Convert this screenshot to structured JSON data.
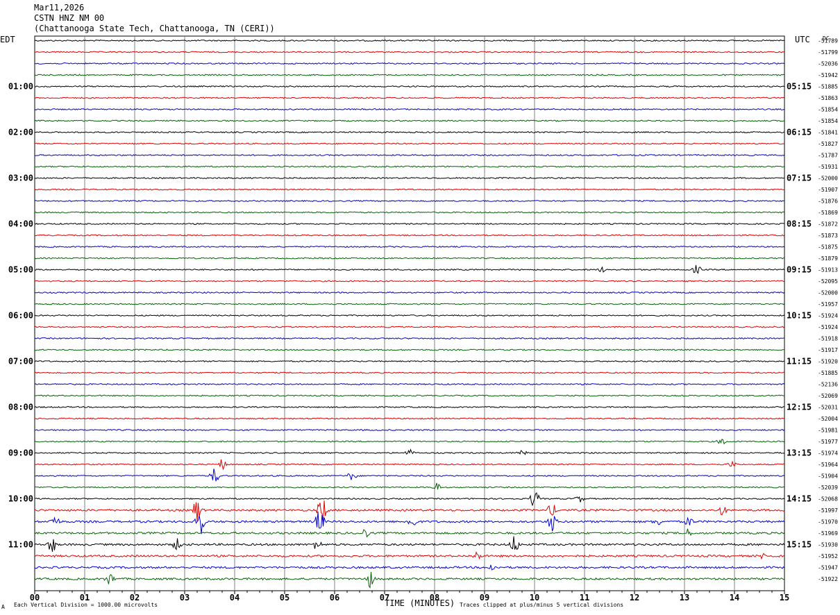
{
  "header": {
    "date": "Mar11,2026",
    "station": "CSTN HNZ NM 00",
    "location": "(Chattanooga State Tech, Chattanooga, TN (CERI))"
  },
  "chart_data": {
    "type": "line",
    "title": "",
    "left_axis_label": "EDT",
    "right_axis_label": "UTC",
    "dc_label": "DC",
    "xlabel": "TIME (MINUTES)",
    "x_range": [
      0,
      15
    ],
    "x_ticks": [
      "00",
      "01",
      "02",
      "03",
      "04",
      "05",
      "06",
      "07",
      "08",
      "09",
      "10",
      "11",
      "12",
      "13",
      "14",
      "15"
    ],
    "grid": true,
    "trace_colors": [
      "#000000",
      "#e00000",
      "#0000d0",
      "#006400"
    ],
    "left_hour_labels": [
      "01:00",
      "02:00",
      "03:00",
      "04:00",
      "05:00",
      "06:00",
      "07:00",
      "08:00",
      "09:00",
      "10:00",
      "11:00"
    ],
    "right_hour_labels": [
      "05:15",
      "06:15",
      "07:15",
      "08:15",
      "09:15",
      "10:15",
      "11:15",
      "12:15",
      "13:15",
      "14:15",
      "15:15"
    ],
    "dc_offsets": [
      "-51789",
      "-51799",
      "-52036",
      "-51942",
      "-51885",
      "-51863",
      "-51854",
      "-51854",
      "-51841",
      "-51827",
      "-51787",
      "-51931",
      "-52000",
      "-51907",
      "-51876",
      "-51869",
      "-51872",
      "-51873",
      "-51875",
      "-51879",
      "-51913",
      "-52095",
      "-52000",
      "-51957",
      "-51924",
      "-51924",
      "-51918",
      "-51917",
      "-51920",
      "-51885",
      "-52136",
      "-52069",
      "-52031",
      "-52004",
      "-51981",
      "-51977",
      "-51974",
      "-51964",
      "-51904",
      "-52039",
      "-52068",
      "-51997",
      "-51970",
      "-51969",
      "-51930",
      "-51952",
      "-51947",
      "-51922"
    ],
    "events": [
      {
        "trace": 20,
        "minute": 11.35,
        "amp": 0.35
      },
      {
        "trace": 20,
        "minute": 13.25,
        "amp": 0.7
      },
      {
        "trace": 35,
        "minute": 13.75,
        "amp": 0.5
      },
      {
        "trace": 36,
        "minute": 7.5,
        "amp": 0.5
      },
      {
        "trace": 36,
        "minute": 9.75,
        "amp": 0.4
      },
      {
        "trace": 37,
        "minute": 3.75,
        "amp": 0.8
      },
      {
        "trace": 37,
        "minute": 13.95,
        "amp": 0.4
      },
      {
        "trace": 38,
        "minute": 3.6,
        "amp": 1.2
      },
      {
        "trace": 38,
        "minute": 6.35,
        "amp": 0.7
      },
      {
        "trace": 39,
        "minute": 8.05,
        "amp": 0.6
      },
      {
        "trace": 40,
        "minute": 10.0,
        "amp": 1.4
      },
      {
        "trace": 40,
        "minute": 10.9,
        "amp": 0.5
      },
      {
        "trace": 41,
        "minute": 3.25,
        "amp": 1.8
      },
      {
        "trace": 41,
        "minute": 5.75,
        "amp": 2.2
      },
      {
        "trace": 41,
        "minute": 10.35,
        "amp": 1.0
      },
      {
        "trace": 41,
        "minute": 13.75,
        "amp": 0.7
      },
      {
        "trace": 42,
        "minute": 0.4,
        "amp": 0.9
      },
      {
        "trace": 42,
        "minute": 3.3,
        "amp": 2.4
      },
      {
        "trace": 42,
        "minute": 5.7,
        "amp": 2.0
      },
      {
        "trace": 42,
        "minute": 7.55,
        "amp": 1.0
      },
      {
        "trace": 42,
        "minute": 10.35,
        "amp": 1.5
      },
      {
        "trace": 42,
        "minute": 12.45,
        "amp": 0.6
      },
      {
        "trace": 42,
        "minute": 13.1,
        "amp": 0.7
      },
      {
        "trace": 43,
        "minute": 6.6,
        "amp": 0.7
      },
      {
        "trace": 43,
        "minute": 13.05,
        "amp": 0.6
      },
      {
        "trace": 44,
        "minute": 0.35,
        "amp": 1.2
      },
      {
        "trace": 44,
        "minute": 2.85,
        "amp": 0.8
      },
      {
        "trace": 44,
        "minute": 5.65,
        "amp": 0.8
      },
      {
        "trace": 44,
        "minute": 9.6,
        "amp": 1.4
      },
      {
        "trace": 45,
        "minute": 8.85,
        "amp": 0.6
      },
      {
        "trace": 45,
        "minute": 14.6,
        "amp": 0.5
      },
      {
        "trace": 46,
        "minute": 9.15,
        "amp": 0.5
      },
      {
        "trace": 47,
        "minute": 1.5,
        "amp": 0.9
      },
      {
        "trace": 47,
        "minute": 6.7,
        "amp": 1.3
      }
    ],
    "scale_note": "Each Vertical Division = 1000.00 microvolts",
    "clip_note": "Traces clipped at plus/minus 5 vertical divisions"
  }
}
